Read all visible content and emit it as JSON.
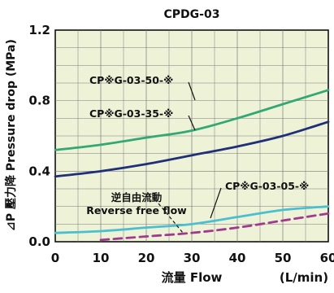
{
  "chart_data": {
    "type": "line",
    "title": "CPDG-03",
    "xlabel": "流量 Flow",
    "xunit": "(L/min)",
    "ylabel": "⊿P 壓力降 Pressure drop (MPa)",
    "xlim": [
      0,
      60
    ],
    "ylim": [
      0,
      1.2
    ],
    "x_ticks": [
      "0",
      "10",
      "20",
      "30",
      "40",
      "50",
      "60"
    ],
    "y_ticks": [
      "0.0",
      "0.4",
      "0.8",
      "1.2"
    ],
    "grid": true,
    "plot_background": "#eef3d8",
    "series": [
      {
        "name": "CP※G-03-50-※",
        "color": "#33a874",
        "dashed": false,
        "x": [
          0,
          10,
          20,
          30,
          40,
          50,
          60
        ],
        "y": [
          0.52,
          0.55,
          0.59,
          0.63,
          0.7,
          0.78,
          0.86
        ]
      },
      {
        "name": "CP※G-03-35-※",
        "color": "#1f2f78",
        "dashed": false,
        "x": [
          0,
          10,
          20,
          30,
          40,
          50,
          60
        ],
        "y": [
          0.37,
          0.4,
          0.44,
          0.49,
          0.54,
          0.6,
          0.68
        ]
      },
      {
        "name": "CP※G-03-05-※",
        "color": "#4bbfd0",
        "dashed": false,
        "x": [
          0,
          10,
          20,
          30,
          40,
          50,
          60
        ],
        "y": [
          0.05,
          0.06,
          0.08,
          0.1,
          0.14,
          0.18,
          0.2
        ]
      },
      {
        "name": "逆自由流動 Reverse free flow",
        "color": "#a03a8e",
        "dashed": true,
        "x": [
          10,
          20,
          30,
          40,
          50,
          60
        ],
        "y": [
          0.01,
          0.03,
          0.05,
          0.08,
          0.12,
          0.16
        ]
      }
    ],
    "annotations": [
      {
        "text": "CP※G-03-50-※",
        "series": 0
      },
      {
        "text": "CP※G-03-35-※",
        "series": 1
      },
      {
        "text": "CP※G-03-05-※",
        "series": 2
      },
      {
        "text": "逆自由流動",
        "series": 3
      },
      {
        "text": "Reverse free flow",
        "series": 3
      }
    ]
  }
}
